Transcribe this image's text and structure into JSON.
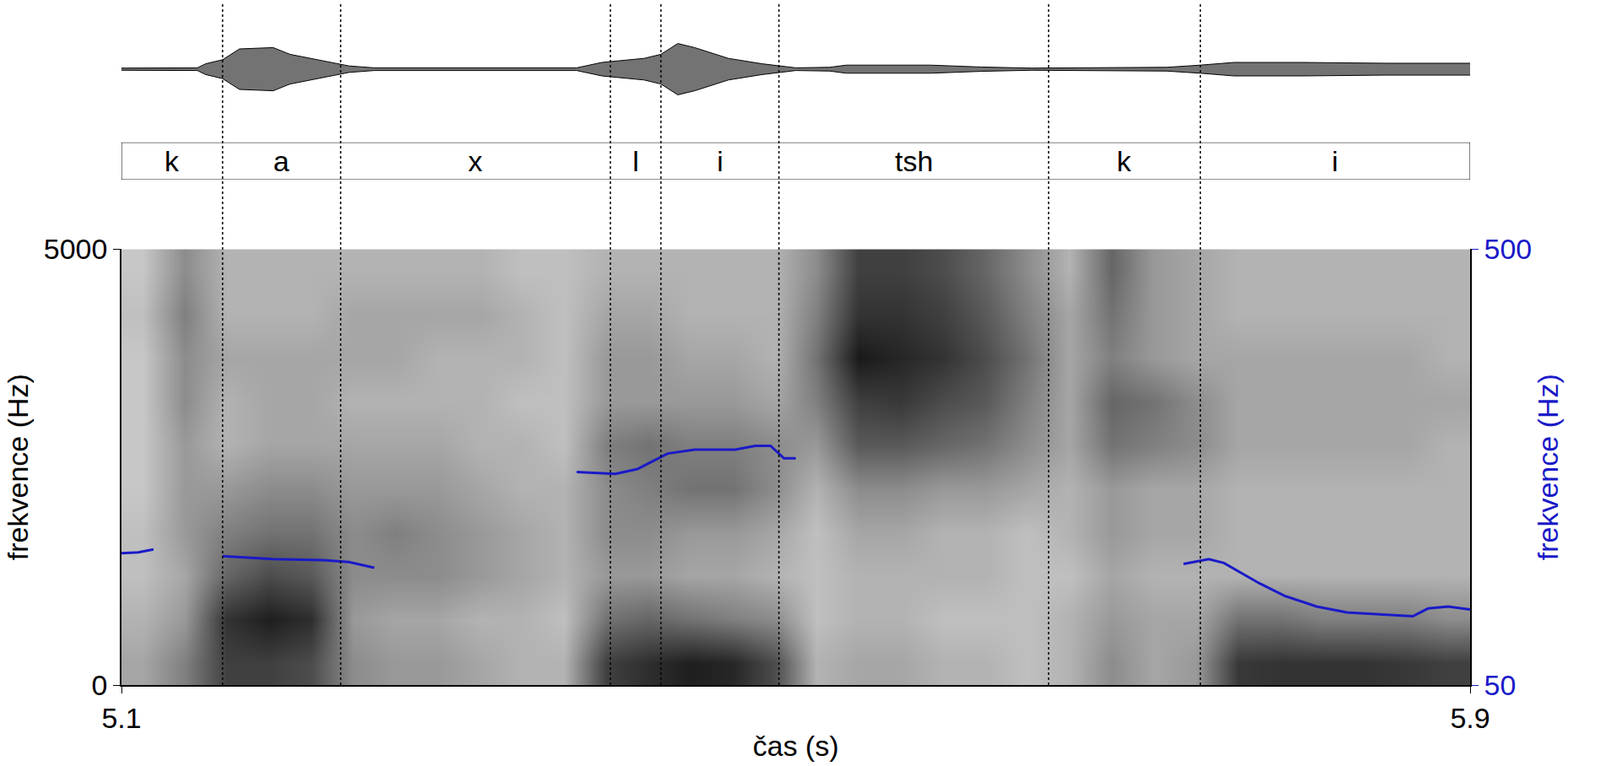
{
  "chart_data": {
    "type": "spectrogram",
    "x_label": "čas (s)",
    "y_label": "frekvence (Hz)",
    "y2_label": "frekvence (Hz)",
    "xlim": [
      5.1,
      5.9
    ],
    "xticks": [
      5.1,
      5.9
    ],
    "ylim": [
      0,
      5000
    ],
    "yticks": [
      0,
      5000
    ],
    "y2lim": [
      50,
      500
    ],
    "y2ticks": [
      50,
      500
    ],
    "log": false,
    "grid": false,
    "segments": [
      {
        "label": "k",
        "start": 5.1,
        "end": 5.16
      },
      {
        "label": "a",
        "start": 5.16,
        "end": 5.23
      },
      {
        "label": "x",
        "start": 5.23,
        "end": 5.39
      },
      {
        "label": "l",
        "start": 5.39,
        "end": 5.42
      },
      {
        "label": "i",
        "start": 5.42,
        "end": 5.49
      },
      {
        "label": "tsh",
        "start": 5.49,
        "end": 5.65
      },
      {
        "label": "k",
        "start": 5.65,
        "end": 5.74
      },
      {
        "label": "i",
        "start": 5.74,
        "end": 5.9
      }
    ],
    "pitch": {
      "axis": "y2",
      "color": "#1a1ac8",
      "line_style": "solid",
      "x": [
        5.1,
        5.11,
        5.119,
        null,
        5.16,
        5.19,
        5.22,
        5.235,
        5.25,
        null,
        5.37,
        5.393,
        5.406,
        5.424,
        5.44,
        5.464,
        5.476,
        5.485,
        5.493,
        5.5,
        null,
        5.73,
        5.745,
        5.754,
        5.775,
        5.79,
        5.809,
        5.827,
        5.845,
        5.866,
        5.875,
        5.887,
        5.9
      ],
      "values": [
        186,
        187,
        190,
        null,
        183,
        180,
        179,
        177,
        171,
        null,
        270,
        268,
        273,
        289,
        293,
        293,
        297,
        297,
        284,
        284,
        null,
        175,
        180,
        176,
        155,
        142,
        131,
        125,
        123,
        121,
        129,
        131,
        128
      ]
    },
    "waveform": {
      "color": "#000000",
      "ylim": [
        -1,
        1
      ],
      "x": [
        5.1,
        5.145,
        5.15,
        5.16,
        5.17,
        5.19,
        5.2,
        5.22,
        5.235,
        5.25,
        5.37,
        5.385,
        5.41,
        5.42,
        5.43,
        5.44,
        5.46,
        5.48,
        5.5,
        5.52,
        5.53,
        5.58,
        5.61,
        5.64,
        5.68,
        5.72,
        5.74,
        5.76,
        5.8,
        5.85,
        5.9
      ],
      "amplitude": [
        0.04,
        0.05,
        0.2,
        0.35,
        0.75,
        0.8,
        0.55,
        0.3,
        0.12,
        0.05,
        0.05,
        0.25,
        0.4,
        0.55,
        0.95,
        0.8,
        0.4,
        0.2,
        0.05,
        0.07,
        0.15,
        0.15,
        0.08,
        0.04,
        0.06,
        0.07,
        0.15,
        0.25,
        0.25,
        0.22,
        0.22
      ]
    },
    "spectrogram": {
      "zlim": [
        0,
        100
      ],
      "x": [
        5.1125,
        5.1375,
        5.1625,
        5.1875,
        5.2125,
        5.2375,
        5.2625,
        5.2875,
        5.3125,
        5.3375,
        5.3625,
        5.3875,
        5.4125,
        5.4375,
        5.4625,
        5.4875,
        5.5125,
        5.5375,
        5.5625,
        5.5875,
        5.6125,
        5.6375,
        5.6625,
        5.6875,
        5.7125,
        5.7375,
        5.7625,
        5.7875,
        5.8125,
        5.8375,
        5.8625,
        5.8875
      ],
      "y": [
        250,
        750,
        1250,
        1750,
        2250,
        2750,
        3250,
        3750,
        4250,
        4750
      ],
      "columns": [
        [
          35,
          30,
          25,
          25,
          22,
          22,
          22,
          22,
          25,
          22
        ],
        [
          50,
          40,
          35,
          40,
          40,
          40,
          45,
          45,
          50,
          45
        ],
        [
          75,
          80,
          60,
          50,
          40,
          30,
          30,
          35,
          30,
          30
        ],
        [
          75,
          88,
          70,
          55,
          45,
          35,
          35,
          35,
          30,
          30
        ],
        [
          70,
          82,
          65,
          55,
          45,
          35,
          35,
          35,
          30,
          30
        ],
        [
          45,
          40,
          45,
          45,
          40,
          35,
          30,
          35,
          35,
          30
        ],
        [
          40,
          35,
          45,
          50,
          40,
          35,
          30,
          35,
          35,
          30
        ],
        [
          40,
          35,
          45,
          45,
          40,
          35,
          30,
          30,
          35,
          30
        ],
        [
          35,
          30,
          40,
          40,
          35,
          30,
          30,
          30,
          35,
          30
        ],
        [
          30,
          30,
          35,
          35,
          30,
          30,
          25,
          30,
          30,
          25
        ],
        [
          30,
          25,
          30,
          30,
          30,
          25,
          25,
          25,
          25,
          25
        ],
        [
          75,
          55,
          40,
          45,
          45,
          50,
          40,
          40,
          35,
          30
        ],
        [
          82,
          60,
          40,
          45,
          50,
          55,
          40,
          40,
          35,
          30
        ],
        [
          88,
          55,
          35,
          40,
          55,
          50,
          40,
          35,
          30,
          30
        ],
        [
          85,
          50,
          35,
          40,
          55,
          50,
          40,
          35,
          30,
          30
        ],
        [
          70,
          45,
          30,
          35,
          45,
          45,
          35,
          30,
          30,
          30
        ],
        [
          30,
          25,
          25,
          25,
          30,
          40,
          50,
          55,
          50,
          45
        ],
        [
          35,
          30,
          30,
          35,
          45,
          65,
          75,
          90,
          80,
          75
        ],
        [
          35,
          30,
          30,
          35,
          45,
          65,
          78,
          85,
          80,
          75
        ],
        [
          30,
          25,
          30,
          30,
          40,
          60,
          70,
          80,
          75,
          70
        ],
        [
          30,
          25,
          30,
          30,
          40,
          55,
          65,
          70,
          65,
          60
        ],
        [
          25,
          25,
          25,
          25,
          35,
          45,
          50,
          55,
          50,
          45
        ],
        [
          30,
          30,
          25,
          30,
          30,
          35,
          35,
          35,
          35,
          30
        ],
        [
          45,
          40,
          35,
          40,
          40,
          55,
          60,
          50,
          55,
          60
        ],
        [
          35,
          35,
          30,
          35,
          35,
          50,
          55,
          40,
          40,
          40
        ],
        [
          40,
          35,
          30,
          35,
          35,
          45,
          45,
          35,
          35,
          35
        ],
        [
          78,
          55,
          30,
          30,
          30,
          35,
          35,
          35,
          30,
          30
        ],
        [
          80,
          55,
          30,
          30,
          30,
          35,
          35,
          35,
          30,
          30
        ],
        [
          80,
          50,
          30,
          30,
          30,
          35,
          35,
          35,
          30,
          30
        ],
        [
          80,
          50,
          30,
          30,
          30,
          35,
          35,
          35,
          30,
          30
        ],
        [
          78,
          50,
          30,
          30,
          30,
          35,
          35,
          35,
          30,
          30
        ],
        [
          75,
          45,
          30,
          30,
          30,
          30,
          35,
          30,
          30,
          30
        ]
      ]
    }
  }
}
